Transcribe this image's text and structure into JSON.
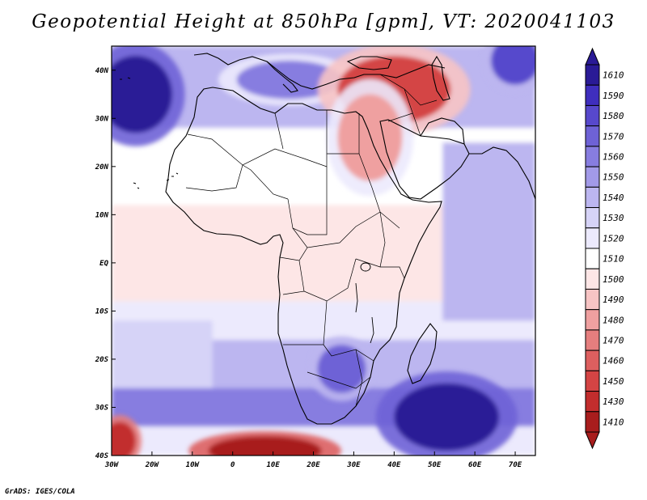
{
  "title": "Geopotential Height at 850hPa [gpm], VT: 2020041103",
  "credit": "GrADS: IGES/COLA",
  "map": {
    "lon_range": [
      -30,
      75
    ],
    "lat_range": [
      -40,
      45
    ],
    "lon_ticks": [
      {
        "value": -30,
        "label": "30W"
      },
      {
        "value": -20,
        "label": "20W"
      },
      {
        "value": -10,
        "label": "10W"
      },
      {
        "value": 0,
        "label": "0"
      },
      {
        "value": 10,
        "label": "10E"
      },
      {
        "value": 20,
        "label": "20E"
      },
      {
        "value": 30,
        "label": "30E"
      },
      {
        "value": 40,
        "label": "40E"
      },
      {
        "value": 50,
        "label": "50E"
      },
      {
        "value": 60,
        "label": "60E"
      },
      {
        "value": 70,
        "label": "70E"
      }
    ],
    "lat_ticks": [
      {
        "value": 40,
        "label": "40N"
      },
      {
        "value": 30,
        "label": "30N"
      },
      {
        "value": 20,
        "label": "20N"
      },
      {
        "value": 10,
        "label": "10N"
      },
      {
        "value": 0,
        "label": "EQ"
      },
      {
        "value": -10,
        "label": "10S"
      },
      {
        "value": -20,
        "label": "20S"
      },
      {
        "value": -30,
        "label": "30S"
      },
      {
        "value": -40,
        "label": "40S"
      }
    ],
    "field_features": [
      {
        "kind": "high",
        "lon": -24,
        "lat": 35,
        "rlon": 9,
        "rlat": 8,
        "value": 1600
      },
      {
        "kind": "high",
        "lon": 53,
        "lat": -32,
        "rlon": 13,
        "rlat": 7,
        "value": 1605
      },
      {
        "kind": "high",
        "lon": 27,
        "lat": -22,
        "rlon": 6,
        "rlat": 5,
        "value": 1572
      },
      {
        "kind": "high",
        "lon": 14,
        "lat": 38,
        "rlon": 13,
        "rlat": 4,
        "value": 1558
      },
      {
        "kind": "high",
        "lon": 70,
        "lat": 42,
        "rlon": 6,
        "rlat": 5,
        "value": 1575
      },
      {
        "kind": "low",
        "lon": 40,
        "lat": 36,
        "rlon": 14,
        "rlat": 7,
        "value": 1445
      },
      {
        "kind": "low",
        "lon": 34,
        "lat": 26,
        "rlon": 8,
        "rlat": 9,
        "value": 1478
      },
      {
        "kind": "low",
        "lon": 8,
        "lat": -39,
        "rlon": 14,
        "rlat": 3,
        "value": 1415
      },
      {
        "kind": "low",
        "lon": -28,
        "lat": -37,
        "rlon": 4,
        "rlat": 4,
        "value": 1430
      }
    ]
  },
  "colorbar": {
    "levels": [
      {
        "label": "1610",
        "color": "#2a1a96"
      },
      {
        "label": "1590",
        "color": "#3f2ebe"
      },
      {
        "label": "1580",
        "color": "#5748cc"
      },
      {
        "label": "1570",
        "color": "#6e62d6"
      },
      {
        "label": "1560",
        "color": "#877de0"
      },
      {
        "label": "1550",
        "color": "#a29ae8"
      },
      {
        "label": "1540",
        "color": "#bcb6f0"
      },
      {
        "label": "1530",
        "color": "#d6d3f7"
      },
      {
        "label": "1520",
        "color": "#eceafd"
      },
      {
        "label": "1510",
        "color": "#ffffff"
      },
      {
        "label": "1500",
        "color": "#fde6e6"
      },
      {
        "label": "1490",
        "color": "#f7c4c4"
      },
      {
        "label": "1480",
        "color": "#efa0a0"
      },
      {
        "label": "1470",
        "color": "#e57e7e"
      },
      {
        "label": "1460",
        "color": "#dd5f5f"
      },
      {
        "label": "1450",
        "color": "#d44444"
      },
      {
        "label": "1430",
        "color": "#c22d2d"
      },
      {
        "label": "1410",
        "color": "#a81d1d"
      }
    ]
  }
}
